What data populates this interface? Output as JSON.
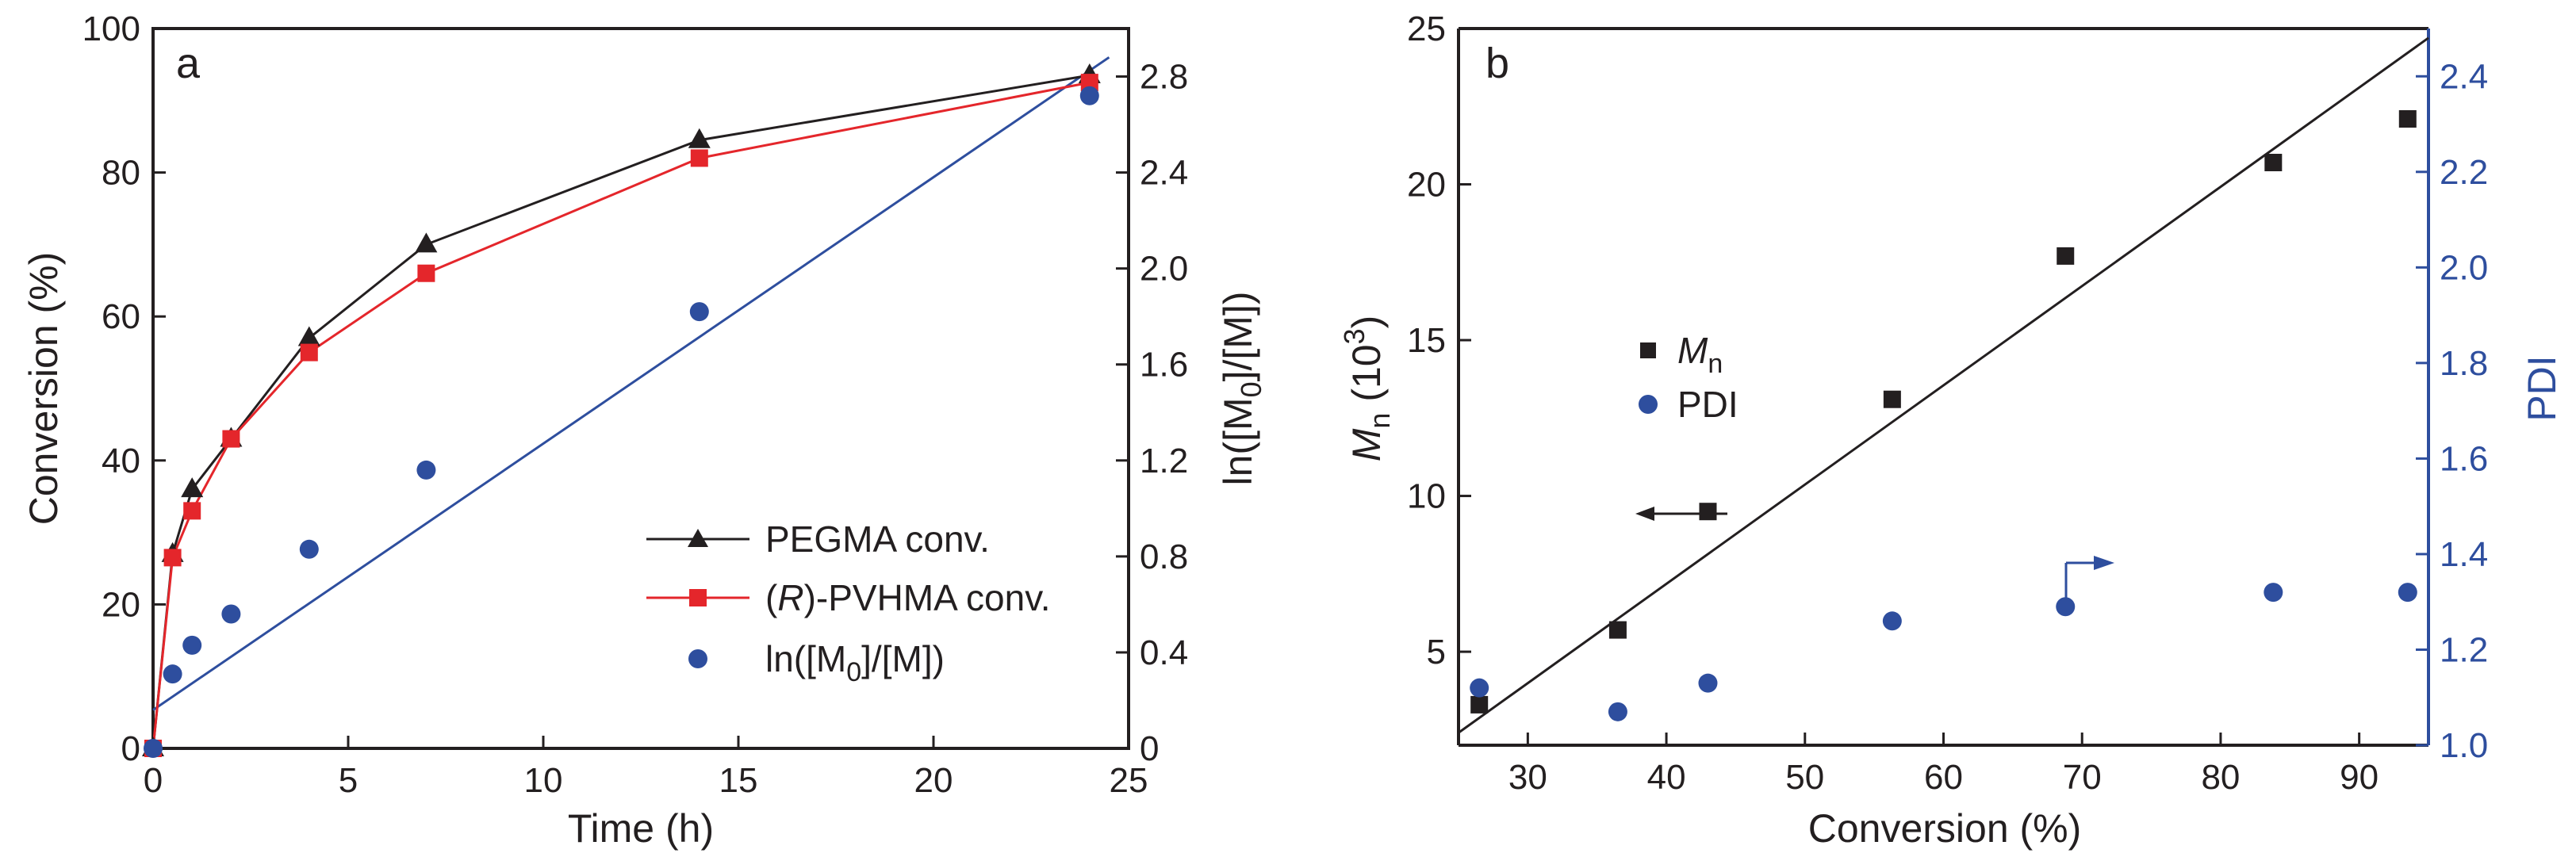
{
  "chart_data": [
    {
      "panel": "a",
      "type": "line",
      "xlabel": "Time (h)",
      "ylabel": "Conversion (%)",
      "y2label_parts": [
        "ln([M",
        "0",
        "]/[M])"
      ],
      "xlim": [
        0,
        25
      ],
      "ylim": [
        0,
        100
      ],
      "y2lim": [
        0,
        3.0
      ],
      "xticks": [
        "0",
        "5",
        "10",
        "15",
        "20",
        "25"
      ],
      "yticks": [
        "0",
        "20",
        "40",
        "60",
        "80",
        "100"
      ],
      "y2ticks": [
        "0",
        "0.4",
        "0.8",
        "1.2",
        "1.6",
        "2.0",
        "2.4",
        "2.8"
      ],
      "series": [
        {
          "name": "PEGMA conv.",
          "color": "#231f20",
          "marker": "triangle",
          "axis": "left",
          "x": [
            0,
            0.5,
            1,
            2,
            4,
            7,
            14,
            24
          ],
          "y": [
            0,
            27,
            36,
            43,
            57,
            70,
            84.5,
            93.5
          ]
        },
        {
          "name_parts": [
            "(",
            "R",
            ")-PVHMA conv."
          ],
          "color": "#e4262b",
          "marker": "square",
          "axis": "left",
          "x": [
            0,
            0.5,
            1,
            2,
            4,
            7,
            14,
            24
          ],
          "y": [
            0,
            26.5,
            33,
            43,
            55,
            66,
            82,
            92.5
          ]
        },
        {
          "name_parts": [
            "ln([M",
            "0",
            "]/[M])"
          ],
          "color": "#2e4e9e",
          "marker": "circle",
          "axis": "right",
          "x": [
            0,
            0.5,
            1,
            2,
            4,
            7,
            14,
            24
          ],
          "y": [
            0,
            0.31,
            0.43,
            0.56,
            0.83,
            1.16,
            1.82,
            2.72
          ]
        }
      ],
      "fit_line": {
        "color": "#2e4e9e",
        "axis": "right",
        "x": [
          0,
          24.5
        ],
        "y": [
          0.16,
          2.88
        ]
      }
    },
    {
      "panel": "b",
      "type": "scatter",
      "xlabel": "Conversion (%)",
      "ylabel_parts": [
        "M",
        "n",
        " (10",
        "3",
        ")"
      ],
      "y2label": "PDI",
      "xlim": [
        25,
        95
      ],
      "ylim": [
        2,
        25
      ],
      "y2lim": [
        1.0,
        2.5
      ],
      "xticks": [
        "30",
        "40",
        "50",
        "60",
        "70",
        "80",
        "90"
      ],
      "yticks": [
        "5",
        "10",
        "15",
        "20",
        "25"
      ],
      "y2ticks": [
        "1.0",
        "1.2",
        "1.4",
        "1.6",
        "1.8",
        "2.0",
        "2.2",
        "2.4"
      ],
      "series": [
        {
          "name_parts": [
            "M",
            "n"
          ],
          "color": "#231f20",
          "marker": "square",
          "axis": "left",
          "x": [
            26.5,
            36.5,
            43,
            56.3,
            68.8,
            83.8,
            93.5
          ],
          "y": [
            3.3,
            5.7,
            9.5,
            13.1,
            17.7,
            20.7,
            22.1
          ]
        },
        {
          "name": "PDI",
          "color": "#2e4e9e",
          "marker": "circle",
          "axis": "right",
          "x": [
            26.5,
            36.5,
            43,
            56.3,
            68.8,
            83.8,
            93.5
          ],
          "y": [
            1.12,
            1.07,
            1.13,
            1.26,
            1.29,
            1.32,
            1.32
          ]
        }
      ],
      "fit_line": {
        "color": "#231f20",
        "axis": "left",
        "x": [
          25,
          95
        ],
        "y": [
          2.4,
          24.7
        ]
      }
    }
  ]
}
